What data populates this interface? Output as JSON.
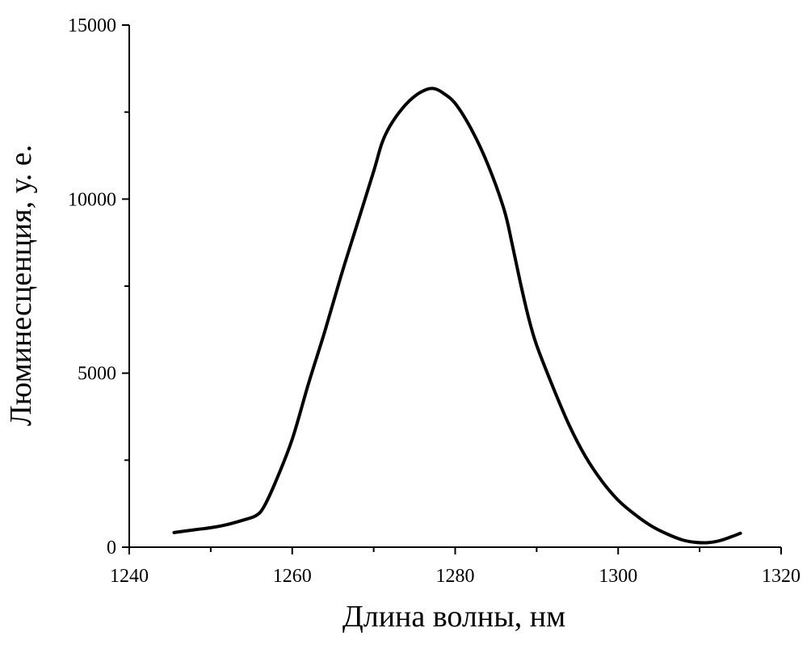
{
  "chart_data": {
    "type": "line",
    "title": "",
    "xlabel": "Длина волны, нм",
    "ylabel": "Люминесценция, у. е.",
    "xlim": [
      1240,
      1320
    ],
    "ylim": [
      0,
      15000
    ],
    "x_ticks": [
      1240,
      1260,
      1280,
      1300,
      1320
    ],
    "x_minor_ticks": [
      1250,
      1270,
      1290,
      1310
    ],
    "y_ticks": [
      0,
      5000,
      10000,
      15000
    ],
    "y_minor_ticks": [
      2500,
      7500,
      12500
    ],
    "x_tick_labels": [
      "1240",
      "1260",
      "1280",
      "1300",
      "1320"
    ],
    "y_tick_labels": [
      "0",
      "5000",
      "10000",
      "15000"
    ],
    "grid": false,
    "series": [
      {
        "color": "#000000",
        "points": [
          [
            1245.5,
            420
          ],
          [
            1248,
            500
          ],
          [
            1250,
            560
          ],
          [
            1252,
            650
          ],
          [
            1254,
            780
          ],
          [
            1255.5,
            900
          ],
          [
            1256.5,
            1150
          ],
          [
            1258,
            1900
          ],
          [
            1260,
            3100
          ],
          [
            1262,
            4700
          ],
          [
            1264,
            6200
          ],
          [
            1266,
            7800
          ],
          [
            1268,
            9300
          ],
          [
            1270,
            10800
          ],
          [
            1271,
            11600
          ],
          [
            1272,
            12100
          ],
          [
            1273.5,
            12600
          ],
          [
            1275,
            12950
          ],
          [
            1276.5,
            13150
          ],
          [
            1277.5,
            13170
          ],
          [
            1278.5,
            13050
          ],
          [
            1280,
            12750
          ],
          [
            1282,
            12000
          ],
          [
            1284,
            11000
          ],
          [
            1286,
            9700
          ],
          [
            1287,
            8700
          ],
          [
            1288,
            7600
          ],
          [
            1289,
            6600
          ],
          [
            1290,
            5800
          ],
          [
            1292,
            4600
          ],
          [
            1294,
            3500
          ],
          [
            1296,
            2600
          ],
          [
            1298,
            1900
          ],
          [
            1300,
            1350
          ],
          [
            1302,
            950
          ],
          [
            1304,
            620
          ],
          [
            1306,
            380
          ],
          [
            1308,
            200
          ],
          [
            1309.5,
            140
          ],
          [
            1311,
            130
          ],
          [
            1312.5,
            190
          ],
          [
            1314,
            310
          ],
          [
            1315,
            400
          ]
        ]
      }
    ]
  }
}
